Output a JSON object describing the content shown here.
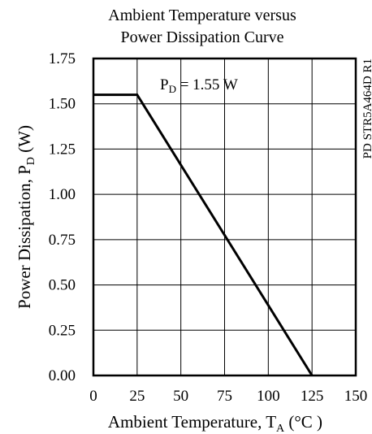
{
  "chart_data": {
    "type": "line",
    "title": [
      "Ambient Temperature versus",
      "Power Dissipation Curve"
    ],
    "xlabel": {
      "main": "Ambient Temperature, T",
      "sub": "A",
      "unit": " (°C )"
    },
    "ylabel": {
      "main": "Power Dissipation, P",
      "sub": "D",
      "unit": " (W)"
    },
    "xlim": [
      0,
      150
    ],
    "ylim": [
      0,
      1.75
    ],
    "x_ticks": [
      "0",
      "25",
      "50",
      "75",
      "100",
      "125",
      "150"
    ],
    "y_ticks": [
      "0.00",
      "0.25",
      "0.50",
      "0.75",
      "1.00",
      "1.25",
      "1.50",
      "1.75"
    ],
    "grid": true,
    "series": [
      {
        "x": [
          0,
          25,
          125
        ],
        "y": [
          1.55,
          1.55,
          0
        ],
        "color": "#000000"
      }
    ],
    "annotation": {
      "prefix": "P",
      "sub": "D",
      "suffix": " = 1.55 W"
    },
    "side_label": "PD  STR5A464D  R1"
  }
}
